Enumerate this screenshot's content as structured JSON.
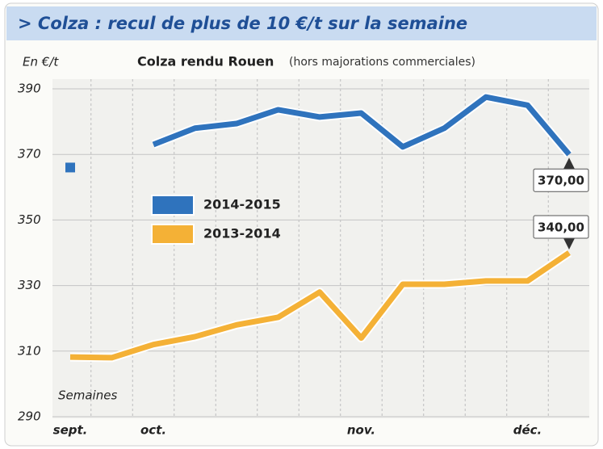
{
  "header": {
    "title": "> Colza : recul de plus de 10 €/t sur la semaine"
  },
  "chart_data": {
    "type": "line",
    "title": "Colza rendu Rouen",
    "subtitle": "(hors majorations commerciales)",
    "y_label": "En €/t",
    "x_label": "Semaines",
    "categories": [
      "sept.",
      null,
      "oct.",
      null,
      null,
      null,
      null,
      "nov.",
      null,
      null,
      null,
      "déc.",
      null
    ],
    "series": [
      {
        "name": "2014-2015",
        "color": "#2f73bd",
        "values": [
          366,
          null,
          373,
          378,
          379.4,
          383.6,
          381.4,
          382.6,
          372.3,
          378,
          387.5,
          385,
          370
        ],
        "value_labels": [
          null,
          null,
          null,
          null,
          null,
          null,
          null,
          null,
          null,
          null,
          null,
          null,
          "370,00"
        ]
      },
      {
        "name": "2013-2014",
        "color": "#f4b136",
        "values": [
          308.2,
          308,
          312,
          314.4,
          318,
          320.3,
          328,
          314,
          330.4,
          330.4,
          331.4,
          331.4,
          340
        ],
        "value_labels": [
          null,
          null,
          null,
          null,
          null,
          null,
          null,
          null,
          null,
          null,
          null,
          null,
          "340,00"
        ]
      }
    ],
    "ylim": [
      290,
      390
    ],
    "yticks": [
      290,
      310,
      330,
      350,
      370,
      390
    ],
    "grid": true
  }
}
